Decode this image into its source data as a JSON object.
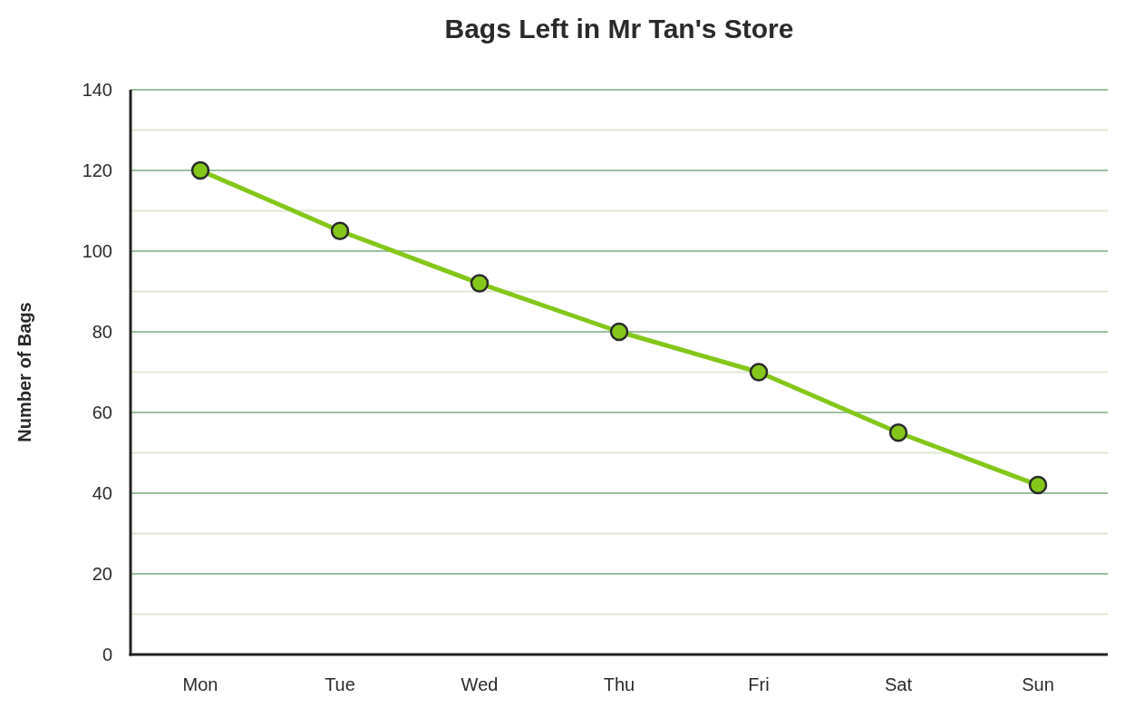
{
  "chart_data": {
    "type": "line",
    "title": "Bags Left in Mr Tan's Store",
    "ylabel": "Number of Bags",
    "categories": [
      "Mon",
      "Tue",
      "Wed",
      "Thu",
      "Fri",
      "Sat",
      "Sun"
    ],
    "series": [
      {
        "color": "#84c71a",
        "values": [
          120,
          105,
          92,
          80,
          70,
          55,
          42
        ]
      }
    ],
    "ylim": [
      0,
      140
    ],
    "yticks": [
      0,
      {
        "value": 10,
        "label": null
      },
      20,
      {
        "value": 30,
        "label": null
      },
      40,
      {
        "value": 50,
        "label": null
      },
      60,
      {
        "value": 70,
        "label": null
      },
      80,
      {
        "value": 90,
        "label": null
      },
      100,
      {
        "value": 110,
        "label": null
      },
      120,
      {
        "value": 130,
        "label": null
      },
      140
    ],
    "grid": "y",
    "marker": "circle",
    "line_style": "solid"
  }
}
